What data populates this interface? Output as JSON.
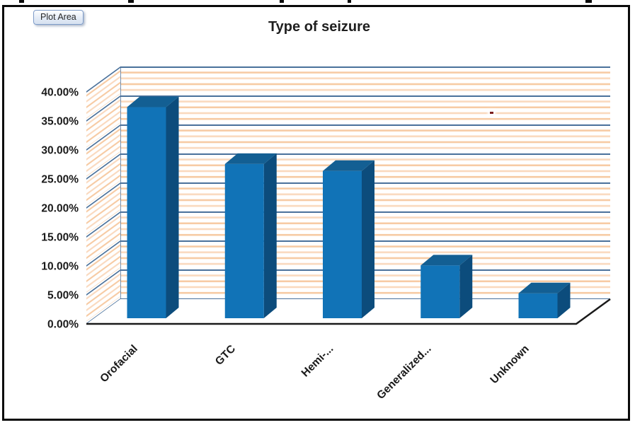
{
  "window": {
    "plot_area_tooltip": "Plot Area"
  },
  "chart_data": {
    "type": "bar",
    "style": "3d-column",
    "title": "Type of seizure",
    "categories": [
      "Orofacial",
      "GTC",
      "Hemi-...",
      "Generalized...",
      "Unknown"
    ],
    "values": [
      36.4,
      26.6,
      25.4,
      9.1,
      4.3
    ],
    "unit": "%",
    "xlabel": "",
    "ylabel": "",
    "ylim": [
      0,
      40
    ],
    "ytick_step": 5,
    "ytick_labels": [
      "0.00%",
      "5.00%",
      "10.00%",
      "15.00%",
      "20.00%",
      "25.00%",
      "30.00%",
      "35.00%",
      "40.00%"
    ],
    "grid": "horizontal-major",
    "legend": "none",
    "wall_fill": "thin horizontal orange stripes on white (Excel pattern fill)",
    "colors": {
      "bar_front": "#1173b7",
      "bar_top": "#135f93",
      "bar_side": "#0c4c7c",
      "gridline": "#4a719b",
      "wall_stripe_a": "#f7cba4",
      "wall_stripe_b": "#fad9be",
      "wall_edge": "#4a719b",
      "axis_line": "#1a1a1a",
      "title_text": "#1f1f1f",
      "tick_text": "#1a1a1a"
    }
  }
}
